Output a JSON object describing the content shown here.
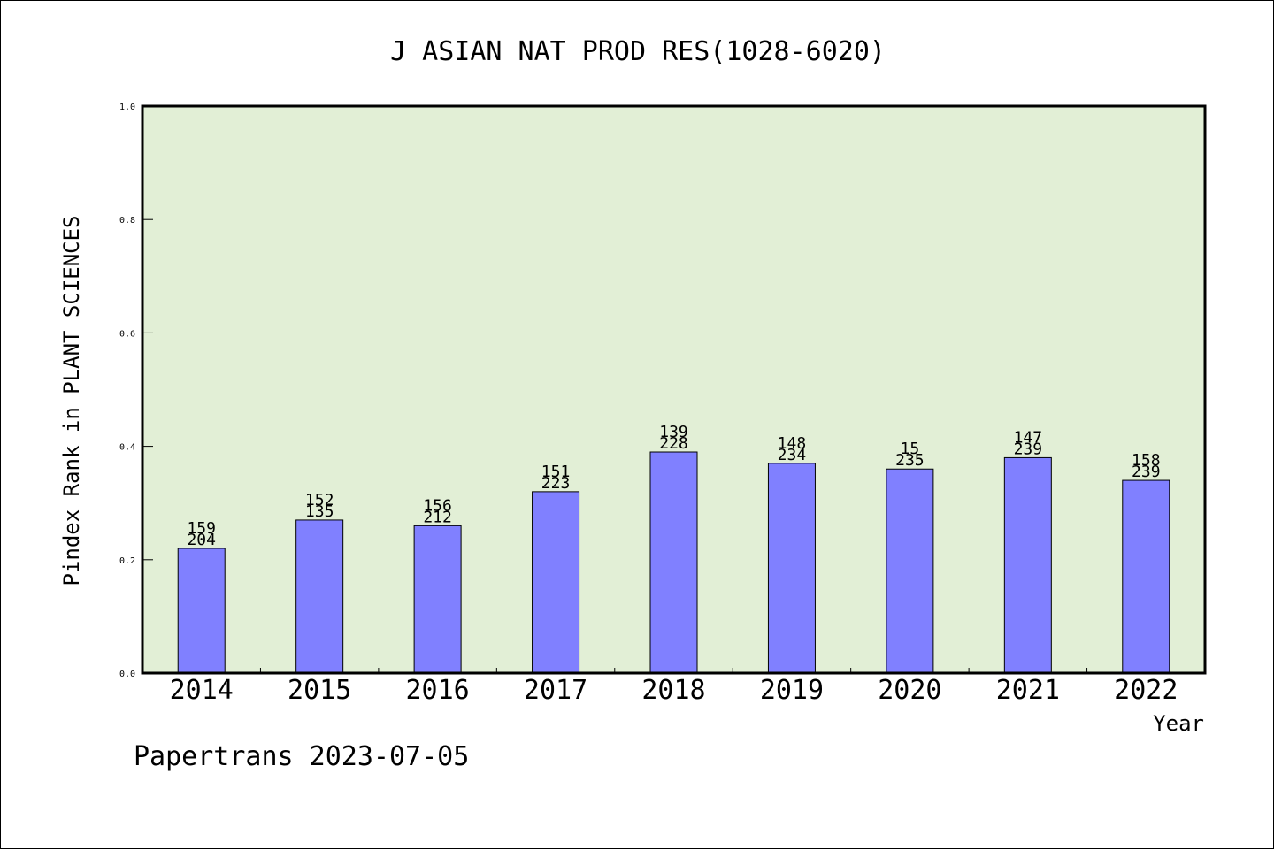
{
  "chart_data": {
    "type": "bar",
    "title": "J ASIAN NAT PROD RES(1028-6020)",
    "xlabel": "Year",
    "ylabel": "Pindex Rank in PLANT SCIENCES",
    "ylim": [
      0,
      1.0
    ],
    "yticks": [
      "0.0",
      "0.2",
      "0.4",
      "0.6",
      "0.8",
      "1.0"
    ],
    "categories": [
      "2014",
      "2015",
      "2016",
      "2017",
      "2018",
      "2019",
      "2020",
      "2021",
      "2022"
    ],
    "values": [
      0.22,
      0.27,
      0.26,
      0.32,
      0.39,
      0.37,
      0.36,
      0.38,
      0.34
    ],
    "labels_top": [
      "159",
      "152",
      "156",
      "151",
      "139",
      "148",
      "15",
      "147",
      "158"
    ],
    "labels_bottom": [
      "204",
      "135",
      "212",
      "223",
      "228",
      "234",
      "235",
      "239",
      "239"
    ],
    "grid": false,
    "colors": {
      "plot_background": "#e2efd6",
      "bar_fill": "#8080ff",
      "bar_stroke": "#000000"
    }
  },
  "footer": {
    "text": "Papertrans 2023-07-05"
  }
}
